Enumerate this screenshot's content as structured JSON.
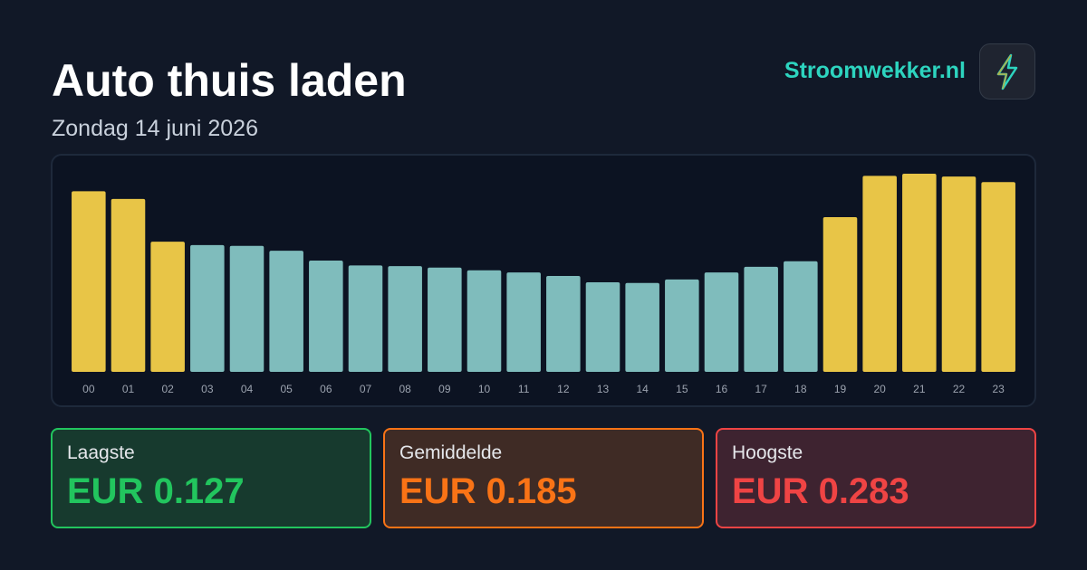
{
  "header": {
    "title": "Auto thuis laden",
    "subtitle": "Zondag 14 juni 2026",
    "brand": "Stroomwekker.nl"
  },
  "chart_data": {
    "type": "bar",
    "categories": [
      "00",
      "01",
      "02",
      "03",
      "04",
      "05",
      "06",
      "07",
      "08",
      "09",
      "10",
      "11",
      "12",
      "13",
      "14",
      "15",
      "16",
      "17",
      "18",
      "19",
      "20",
      "21",
      "22",
      "23"
    ],
    "values": [
      0.258,
      0.247,
      0.186,
      0.181,
      0.18,
      0.173,
      0.159,
      0.152,
      0.151,
      0.149,
      0.145,
      0.142,
      0.137,
      0.128,
      0.127,
      0.132,
      0.142,
      0.15,
      0.158,
      0.221,
      0.28,
      0.283,
      0.279,
      0.271
    ],
    "colors": [
      "#e8c547",
      "#e8c547",
      "#e8c547",
      "#7fbcbc",
      "#7fbcbc",
      "#7fbcbc",
      "#7fbcbc",
      "#7fbcbc",
      "#7fbcbc",
      "#7fbcbc",
      "#7fbcbc",
      "#7fbcbc",
      "#7fbcbc",
      "#7fbcbc",
      "#7fbcbc",
      "#7fbcbc",
      "#7fbcbc",
      "#7fbcbc",
      "#7fbcbc",
      "#e8c547",
      "#e8c547",
      "#e8c547",
      "#e8c547",
      "#e8c547"
    ]
  },
  "stats": [
    {
      "label": "Laagste",
      "value": "EUR 0.127"
    },
    {
      "label": "Gemiddelde",
      "value": "EUR 0.185"
    },
    {
      "label": "Hoogste",
      "value": "EUR 0.283"
    }
  ]
}
